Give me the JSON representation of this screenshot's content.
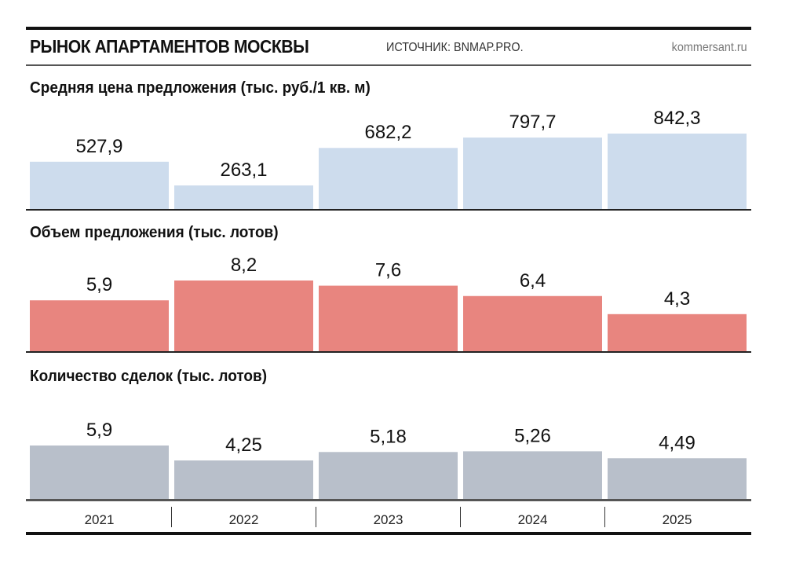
{
  "header": {
    "title": "РЫНОК АПАРТАМЕНТОВ МОСКВЫ",
    "source": "ИСТОЧНИК: BNMAP.PRO.",
    "site": "kommersant.ru"
  },
  "chart_data": [
    {
      "type": "bar",
      "title": "Средняя цена предложения (тыс. руб./1 кв. м)",
      "categories": [
        "2021",
        "2022",
        "2023",
        "2024",
        "2025"
      ],
      "values": [
        527.9,
        263.1,
        682.2,
        797.7,
        842.3
      ],
      "labels": [
        "527,9",
        "263,1",
        "682,2",
        "797,7",
        "842,3"
      ],
      "color": "#cddced"
    },
    {
      "type": "bar",
      "title": "Объем предложения (тыс. лотов)",
      "categories": [
        "2021",
        "2022",
        "2023",
        "2024",
        "2025"
      ],
      "values": [
        5.9,
        8.2,
        7.6,
        6.4,
        4.3
      ],
      "labels": [
        "5,9",
        "8,2",
        "7,6",
        "6,4",
        "4,3"
      ],
      "color": "#e8857f"
    },
    {
      "type": "bar",
      "title": "Количество сделок (тыс. лотов)",
      "categories": [
        "2021",
        "2022",
        "2023",
        "2024",
        "2025"
      ],
      "values": [
        5.9,
        4.25,
        5.18,
        5.26,
        4.49
      ],
      "labels": [
        "5,9",
        "4,25",
        "5,18",
        "5,26",
        "4,49"
      ],
      "color": "#b8bfca"
    }
  ]
}
